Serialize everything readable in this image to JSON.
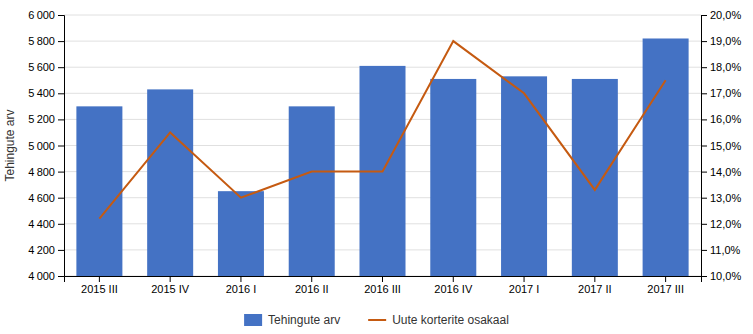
{
  "chart_data": {
    "type": "bar",
    "categories": [
      "2015 III",
      "2015 IV",
      "2016 I",
      "2016 II",
      "2016 III",
      "2016 IV",
      "2017 I",
      "2017 II",
      "2017 III"
    ],
    "series": [
      {
        "name": "Tehingute arv",
        "type": "bar",
        "color": "#4472C4",
        "values": [
          5300,
          5430,
          4650,
          5300,
          5610,
          5510,
          5530,
          5510,
          5820
        ]
      },
      {
        "name": "Uute korterite osakaal",
        "type": "line",
        "axis": "y2",
        "color": "#C55A11",
        "values": [
          12.2,
          15.5,
          13.0,
          14.0,
          14.0,
          19.0,
          17.0,
          13.3,
          17.5
        ]
      }
    ],
    "ylabel": "Tehingute arv",
    "ylim": [
      4000,
      6000
    ],
    "yticks": [
      {
        "value": 4000,
        "label": "4 000"
      },
      {
        "value": 4200,
        "label": "4 200"
      },
      {
        "value": 4400,
        "label": "4 400"
      },
      {
        "value": 4600,
        "label": "4 600"
      },
      {
        "value": 4800,
        "label": "4 800"
      },
      {
        "value": 5000,
        "label": "5 000"
      },
      {
        "value": 5200,
        "label": "5 200"
      },
      {
        "value": 5400,
        "label": "5 400"
      },
      {
        "value": 5600,
        "label": "5 600"
      },
      {
        "value": 5800,
        "label": "5 800"
      },
      {
        "value": 6000,
        "label": "6 000"
      }
    ],
    "y2lim": [
      10.0,
      20.0
    ],
    "y2ticks": [
      {
        "value": 10.0,
        "label": "10,0%"
      },
      {
        "value": 11.0,
        "label": "11,0%"
      },
      {
        "value": 12.0,
        "label": "12,0%"
      },
      {
        "value": 13.0,
        "label": "13,0%"
      },
      {
        "value": 14.0,
        "label": "14,0%"
      },
      {
        "value": 15.0,
        "label": "15,0%"
      },
      {
        "value": 16.0,
        "label": "16,0%"
      },
      {
        "value": 17.0,
        "label": "17,0%"
      },
      {
        "value": 18.0,
        "label": "18,0%"
      },
      {
        "value": 19.0,
        "label": "19,0%"
      },
      {
        "value": 20.0,
        "label": "20,0%"
      }
    ],
    "grid": true,
    "legend": "bottom"
  }
}
